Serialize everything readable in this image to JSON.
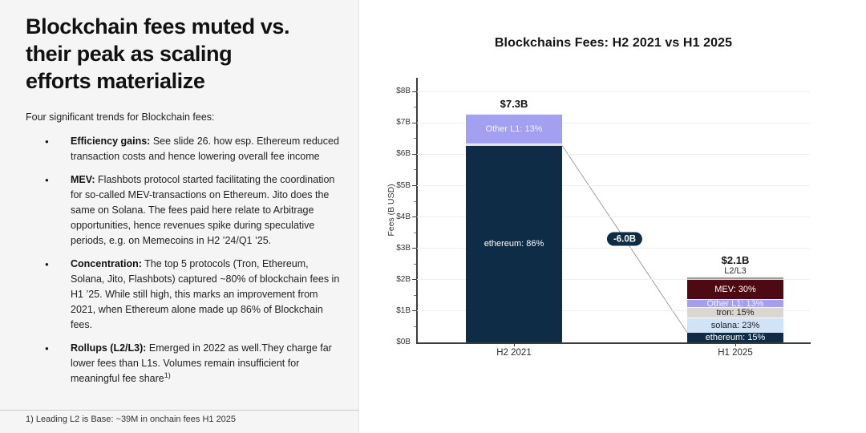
{
  "left_panel": {
    "title": "Blockchain fees muted vs.\ntheir peak as scaling\nefforts materialize",
    "intro": "Four significant trends for Blockchain fees:",
    "bullet_marker": "●",
    "bullets": [
      {
        "lead": "Efficiency gains:",
        "text": " See slide 26. how esp. Ethereum reduced transaction costs and hence lowering overall fee income",
        "sup": ""
      },
      {
        "lead": "MEV:",
        "text": " Flashbots protocol started facilitating the coordination for so-called MEV-transactions on Ethereum. Jito does the same on Solana. The fees paid here relate to Arbitrage opportunities, hence revenues spike during speculative periods, e.g. on Memecoins in H2 ’24/Q1 ’25.",
        "sup": ""
      },
      {
        "lead": "Concentration:",
        "text": " The top 5 protocols (Tron, Ethereum, Solana, Jito, Flashbots) captured ~80% of blockchain fees in H1 ’25. While still high, this marks an improvement from 2021, when Ethereum alone made up 86% of Blockchain fees.",
        "sup": ""
      },
      {
        "lead": "Rollups (L2/L3):",
        "text": " Emerged in 2022 as well.They charge far lower fees than L1s. Volumes remain insufficient for meaningful fee share",
        "sup": "1)"
      }
    ],
    "footnote": "1) Leading L2 is Base: ~39M in onchain fees H1 2025"
  },
  "chart_data": {
    "type": "bar",
    "stacked": true,
    "title": "Blockchains Fees: H2 2021 vs H1 2025",
    "xlabel": "",
    "ylabel": "Fees (B USD)",
    "ylim": [
      0,
      8.44
    ],
    "yticks_b_usd": [
      0,
      1,
      2,
      3,
      4,
      5,
      6,
      7,
      8
    ],
    "ytick_labels": [
      "$0B",
      "$1B",
      "$2B",
      "$3B",
      "$4B",
      "$5B",
      "$6B",
      "$7B",
      "$8B"
    ],
    "grid": "horizontal-major",
    "legend": "none",
    "categories": [
      "H2 2021",
      "H1 2025"
    ],
    "total_values_b_usd": [
      7.3,
      2.1
    ],
    "total_labels": [
      "$7.3B",
      "$2.1B"
    ],
    "bars": [
      {
        "category": "H2 2021",
        "total_value": 7.3,
        "total_label": "$7.3B",
        "segments": [
          {
            "name": "ethereum",
            "label": "ethereum: 86%",
            "pct": 86,
            "color": "#0e2c45",
            "text_color": "#ffffff"
          },
          {
            "name": "minor-sliver",
            "label": "",
            "pct": 1,
            "color": "#dfdcd7",
            "text_color": "#333333"
          },
          {
            "name": "other-l1",
            "label": "Other L1: 13%",
            "pct": 13,
            "color": "#a3a0f2",
            "text_color": "#f3f3ff"
          }
        ]
      },
      {
        "category": "H1 2025",
        "total_value": 2.1,
        "total_label": "$2.1B",
        "segments": [
          {
            "name": "ethereum",
            "label": "ethereum: 15%",
            "pct": 15,
            "color": "#0e2c45",
            "text_color": "#ffffff"
          },
          {
            "name": "solana",
            "label": "solana: 23%",
            "pct": 23,
            "color": "#d0e3f7",
            "text_color": "#1c1c1c"
          },
          {
            "name": "tron",
            "label": "tron: 15%",
            "pct": 15,
            "color": "#dad6d0",
            "text_color": "#1c1c1c"
          },
          {
            "name": "other-l1",
            "label": "Other L1: 13%",
            "pct": 13,
            "color": "#a3a0f2",
            "text_color": "#f3f3ff"
          },
          {
            "name": "mev",
            "label": "MEV: 30%",
            "pct": 30,
            "color": "#4e0a13",
            "text_color": "#ffffff"
          },
          {
            "name": "l2-l3",
            "label": "L2/L3",
            "pct": 4,
            "color": "#9d9d9d",
            "text_color": "#2a2a2a",
            "label_outside": true
          }
        ]
      }
    ],
    "annotation": {
      "text": "-6.0B",
      "from_bar": 0,
      "from_value_b_usd": 6.28,
      "to_bar": 1,
      "to_value_b_usd": 0.315
    }
  }
}
